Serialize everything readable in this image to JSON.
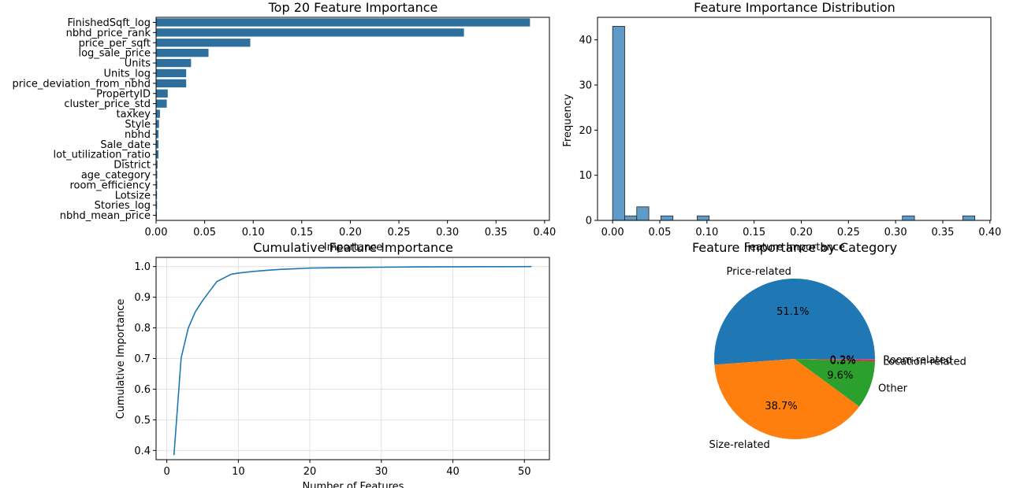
{
  "figure": {
    "colors": {
      "bar": "#2e6f9e",
      "hist": "#5f9bc9",
      "hist_edge": "#222222",
      "line": "#1f77b4",
      "grid": "#dddddd",
      "pie": [
        "#1f77b4",
        "#ff7f0e",
        "#2ca02c",
        "#d62728",
        "#9467bd"
      ]
    }
  },
  "chart_data": [
    {
      "type": "bar",
      "orientation": "horizontal",
      "title": "Top 20 Feature Importance",
      "xlabel": "Importance",
      "ylabel": "",
      "xlim": [
        0,
        0.405
      ],
      "xticks": [
        "0.00",
        "0.05",
        "0.10",
        "0.15",
        "0.20",
        "0.25",
        "0.30",
        "0.35",
        "0.40"
      ],
      "categories": [
        "FinishedSqft_log",
        "nbhd_price_rank",
        "price_per_sqft",
        "log_sale_price",
        "Units",
        "Units_log",
        "price_deviation_from_nbhd",
        "PropertyID",
        "cluster_price_std",
        "taxkey",
        "Style",
        "nbhd",
        "Sale_date",
        "lot_utilization_ratio",
        "District",
        "age_category",
        "room_efficiency",
        "Lotsize",
        "Stories_log",
        "nbhd_mean_price"
      ],
      "values": [
        0.385,
        0.317,
        0.097,
        0.054,
        0.036,
        0.031,
        0.031,
        0.012,
        0.011,
        0.004,
        0.003,
        0.0025,
        0.0025,
        0.0025,
        0.0015,
        0.0012,
        0.0012,
        0.001,
        0.001,
        0.0008
      ]
    },
    {
      "type": "bar",
      "subtype": "histogram",
      "title": "Feature Importance Distribution",
      "xlabel": "Feature Importance",
      "ylabel": "Frequency",
      "xlim": [
        -0.016,
        0.401
      ],
      "ylim": [
        0,
        45
      ],
      "xticks": [
        "0.00",
        "0.05",
        "0.10",
        "0.15",
        "0.20",
        "0.25",
        "0.30",
        "0.35",
        "0.40"
      ],
      "yticks": [
        "0",
        "10",
        "20",
        "30",
        "40"
      ],
      "bin_start": 0.0,
      "bin_width": 0.0128,
      "counts": [
        43,
        1,
        3,
        0,
        1,
        0,
        0,
        1,
        0,
        0,
        0,
        0,
        0,
        0,
        0,
        0,
        0,
        0,
        0,
        0,
        0,
        0,
        0,
        0,
        1,
        0,
        0,
        0,
        0,
        1
      ]
    },
    {
      "type": "line",
      "title": "Cumulative Feature Importance",
      "xlabel": "Number of Features",
      "ylabel": "Cumulative Importance",
      "grid": true,
      "xlim": [
        -1.5,
        53.5
      ],
      "ylim": [
        0.37,
        1.03
      ],
      "xticks": [
        "0",
        "10",
        "20",
        "30",
        "40",
        "50"
      ],
      "yticks": [
        "0.4",
        "0.5",
        "0.6",
        "0.7",
        "0.8",
        "0.9",
        "1.0"
      ],
      "x": [
        1,
        2,
        3,
        4,
        5,
        6,
        7,
        8,
        9,
        10,
        12,
        14,
        16,
        18,
        20,
        25,
        30,
        35,
        40,
        45,
        51
      ],
      "y": [
        0.385,
        0.702,
        0.799,
        0.853,
        0.889,
        0.92,
        0.951,
        0.963,
        0.975,
        0.979,
        0.984,
        0.988,
        0.991,
        0.993,
        0.995,
        0.997,
        0.998,
        0.999,
        0.9995,
        0.9998,
        1.0
      ]
    },
    {
      "type": "pie",
      "title": "Feature Importance by Category",
      "slices": [
        {
          "label": "Price-related",
          "value": 51.1,
          "pct_label": "51.1%"
        },
        {
          "label": "Size-related",
          "value": 38.7,
          "pct_label": "38.7%"
        },
        {
          "label": "Other",
          "value": 9.6,
          "pct_label": "9.6%"
        },
        {
          "label": "Location-related",
          "value": 0.3,
          "pct_label": "0.3%"
        },
        {
          "label": "Room-related",
          "value": 0.2,
          "pct_label": "0.2%"
        }
      ]
    }
  ]
}
